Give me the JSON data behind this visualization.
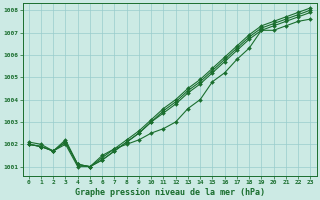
{
  "bg_color": "#cceae4",
  "grid_color": "#99cccc",
  "line_color": "#1a6e2e",
  "text_color": "#1a6e2e",
  "xlabel": "Graphe pression niveau de la mer (hPa)",
  "xlim_min": -0.5,
  "xlim_max": 23.5,
  "ylim_min": 1000.6,
  "ylim_max": 1008.3,
  "yticks": [
    1001,
    1002,
    1003,
    1004,
    1005,
    1006,
    1007,
    1008
  ],
  "xticks": [
    0,
    1,
    2,
    3,
    4,
    5,
    6,
    7,
    8,
    9,
    10,
    11,
    12,
    13,
    14,
    15,
    16,
    17,
    18,
    19,
    20,
    21,
    22,
    23
  ],
  "series": [
    [
      1002.0,
      1001.9,
      1001.7,
      1002.0,
      1001.0,
      1001.0,
      1001.5,
      1001.8,
      1002.0,
      1002.2,
      1002.5,
      1002.7,
      1003.0,
      1003.6,
      1004.0,
      1004.8,
      1005.2,
      1005.8,
      1006.3,
      1007.1,
      1007.1,
      1007.3,
      1007.5,
      1007.6
    ],
    [
      1002.0,
      1001.9,
      1001.7,
      1002.1,
      1001.1,
      1001.0,
      1001.3,
      1001.7,
      1002.1,
      1002.5,
      1003.0,
      1003.4,
      1003.8,
      1004.3,
      1004.7,
      1005.2,
      1005.7,
      1006.2,
      1006.7,
      1007.1,
      1007.3,
      1007.5,
      1007.7,
      1007.9
    ],
    [
      1002.0,
      1001.9,
      1001.7,
      1002.1,
      1001.1,
      1001.0,
      1001.3,
      1001.7,
      1002.1,
      1002.5,
      1003.0,
      1003.5,
      1003.9,
      1004.4,
      1004.8,
      1005.3,
      1005.8,
      1006.3,
      1006.8,
      1007.2,
      1007.4,
      1007.6,
      1007.8,
      1008.0
    ],
    [
      1002.1,
      1002.0,
      1001.7,
      1002.2,
      1001.1,
      1001.0,
      1001.4,
      1001.8,
      1002.2,
      1002.6,
      1003.1,
      1003.6,
      1004.0,
      1004.5,
      1004.9,
      1005.4,
      1005.9,
      1006.4,
      1006.9,
      1007.3,
      1007.5,
      1007.7,
      1007.9,
      1008.1
    ]
  ],
  "marker": "D",
  "markersize": 2.0,
  "linewidth": 0.8,
  "xlabel_fontsize": 6.0,
  "tick_fontsize": 4.5,
  "spine_linewidth": 0.7
}
